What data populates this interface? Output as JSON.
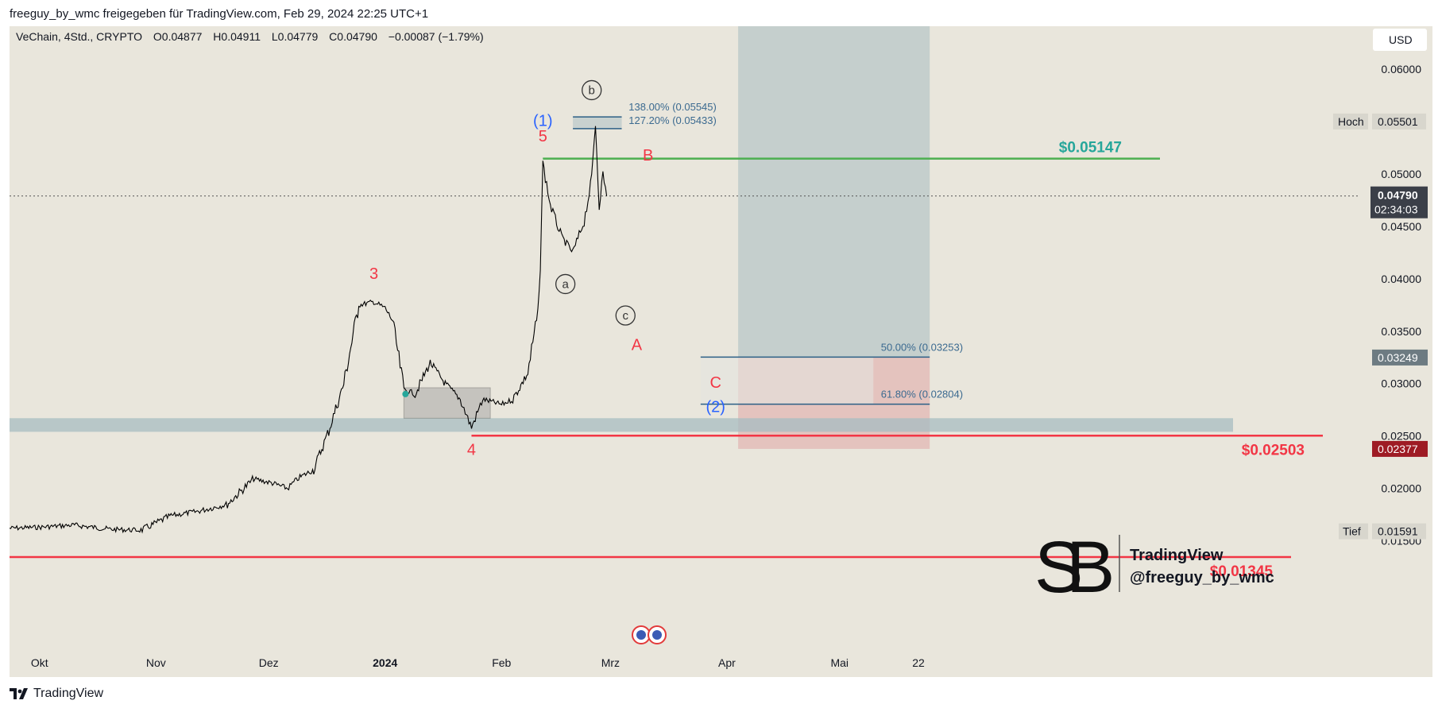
{
  "header": {
    "attribution": "freeguy_by_wmc freigegeben für TradingView.com, Feb 29, 2024 22:25 UTC+1"
  },
  "footer": {
    "brand": "TradingView"
  },
  "chart_data": {
    "type": "candlestick",
    "symbol_info": "VeChain, 4Std., CRYPTO",
    "ohlc": {
      "open": "O0.04877",
      "high": "H0.04911",
      "low": "L0.04779",
      "close": "C0.04790",
      "change": "−0.00087 (−1.79%)"
    },
    "currency": "USD",
    "ylim": [
      0.0133,
      0.0641
    ],
    "y_ticks": [
      "0.06000",
      "0.05000",
      "0.04500",
      "0.04000",
      "0.03500",
      "0.03000",
      "0.02500",
      "0.02000",
      "0.01500"
    ],
    "x_ticks": [
      "Okt",
      "Nov",
      "Dez",
      "2024",
      "Feb",
      "Mrz",
      "Apr",
      "Mai",
      "22"
    ],
    "price_tags": {
      "high_label": "Hoch",
      "high_value": "0.05501",
      "current_value": "0.04790",
      "countdown": "02:34:03",
      "level_value": "0.03249",
      "stop_value": "0.02377",
      "low_label": "Tief",
      "low_value": "0.01591"
    },
    "current_price": 0.0479,
    "price_path": [
      {
        "d": "2023-09-23",
        "v": 0.0162
      },
      {
        "d": "2023-10-01",
        "v": 0.0163
      },
      {
        "d": "2023-10-10",
        "v": 0.0165
      },
      {
        "d": "2023-10-20",
        "v": 0.0161
      },
      {
        "d": "2023-10-28",
        "v": 0.016
      },
      {
        "d": "2023-11-05",
        "v": 0.0174
      },
      {
        "d": "2023-11-12",
        "v": 0.0178
      },
      {
        "d": "2023-11-20",
        "v": 0.0185
      },
      {
        "d": "2023-11-27",
        "v": 0.0209
      },
      {
        "d": "2023-12-02",
        "v": 0.0205
      },
      {
        "d": "2023-12-06",
        "v": 0.02
      },
      {
        "d": "2023-12-09",
        "v": 0.021
      },
      {
        "d": "2023-12-13",
        "v": 0.0218
      },
      {
        "d": "2023-12-17",
        "v": 0.0255
      },
      {
        "d": "2023-12-21",
        "v": 0.03
      },
      {
        "d": "2023-12-25",
        "v": 0.0375
      },
      {
        "d": "2023-12-29",
        "v": 0.0378
      },
      {
        "d": "2024-01-01",
        "v": 0.0372
      },
      {
        "d": "2024-01-03",
        "v": 0.036
      },
      {
        "d": "2024-01-06",
        "v": 0.0295
      },
      {
        "d": "2024-01-09",
        "v": 0.029
      },
      {
        "d": "2024-01-13",
        "v": 0.032
      },
      {
        "d": "2024-01-17",
        "v": 0.03
      },
      {
        "d": "2024-01-21",
        "v": 0.0285
      },
      {
        "d": "2024-01-24",
        "v": 0.0258
      },
      {
        "d": "2024-01-27",
        "v": 0.0285
      },
      {
        "d": "2024-02-01",
        "v": 0.028
      },
      {
        "d": "2024-02-04",
        "v": 0.0285
      },
      {
        "d": "2024-02-08",
        "v": 0.031
      },
      {
        "d": "2024-02-11",
        "v": 0.0375
      },
      {
        "d": "2024-02-12",
        "v": 0.051
      },
      {
        "d": "2024-02-14",
        "v": 0.047
      },
      {
        "d": "2024-02-17",
        "v": 0.044
      },
      {
        "d": "2024-02-20",
        "v": 0.0425
      },
      {
        "d": "2024-02-23",
        "v": 0.0455
      },
      {
        "d": "2024-02-25",
        "v": 0.0495
      },
      {
        "d": "2024-02-26",
        "v": 0.055
      },
      {
        "d": "2024-02-27",
        "v": 0.047
      },
      {
        "d": "2024-02-28",
        "v": 0.05
      },
      {
        "d": "2024-02-29",
        "v": 0.0479
      }
    ],
    "horizontal_levels": [
      {
        "label": "$0.05147",
        "value": 0.05147,
        "color": "#26a69a",
        "line": "#4caf50"
      },
      {
        "label": "$0.02503",
        "value": 0.02503,
        "color": "#f23645",
        "line": "#f23645"
      },
      {
        "label": "$0.01345",
        "value": 0.01345,
        "color": "#f23645",
        "line": "#f23645"
      }
    ],
    "fib_top": [
      {
        "label": "138.00% (0.05545)",
        "value": 0.05545
      },
      {
        "label": "127.20% (0.05433)",
        "value": 0.05433
      }
    ],
    "fib_bottom": [
      {
        "label": "50.00% (0.03253)",
        "value": 0.03253
      },
      {
        "label": "61.80% (0.02804)",
        "value": 0.02804
      }
    ],
    "zones": {
      "target_top": 0.0641,
      "entry": 0.03249,
      "stop": 0.02377,
      "support_band": [
        0.0254,
        0.0267
      ],
      "consolidation_box": [
        0.0267,
        0.0296
      ]
    },
    "wave_labels": [
      {
        "text": "3",
        "d": "2023-12-29",
        "v": 0.04,
        "color": "#f23645"
      },
      {
        "text": "4",
        "d": "2024-01-24",
        "v": 0.0232,
        "color": "#f23645"
      },
      {
        "text": "5",
        "d": "2024-02-12",
        "v": 0.0531,
        "color": "#f23645"
      },
      {
        "text": "(1)",
        "d": "2024-02-12",
        "v": 0.0546,
        "color": "#2962ff"
      },
      {
        "text": "B",
        "d": "2024-03-11",
        "v": 0.0513,
        "color": "#f23645"
      },
      {
        "text": "A",
        "d": "2024-03-08",
        "v": 0.0332,
        "color": "#f23645"
      },
      {
        "text": "C",
        "d": "2024-03-29",
        "v": 0.0296,
        "color": "#f23645"
      },
      {
        "text": "(2)",
        "d": "2024-03-29",
        "v": 0.0273,
        "color": "#2962ff"
      }
    ],
    "circle_labels": [
      {
        "text": "b",
        "d": "2024-02-25",
        "v": 0.058
      },
      {
        "text": "a",
        "d": "2024-02-18",
        "v": 0.0395
      },
      {
        "text": "c",
        "d": "2024-03-05",
        "v": 0.0365
      }
    ],
    "watermark": {
      "brand_line": "TradingView",
      "handle": "@freeguy_by_wmc"
    },
    "colors": {
      "background": "#e9e6dc",
      "candles": "#000000",
      "target_zone": "#a7bcc1",
      "stop_zone": "#e0a5a5"
    }
  }
}
